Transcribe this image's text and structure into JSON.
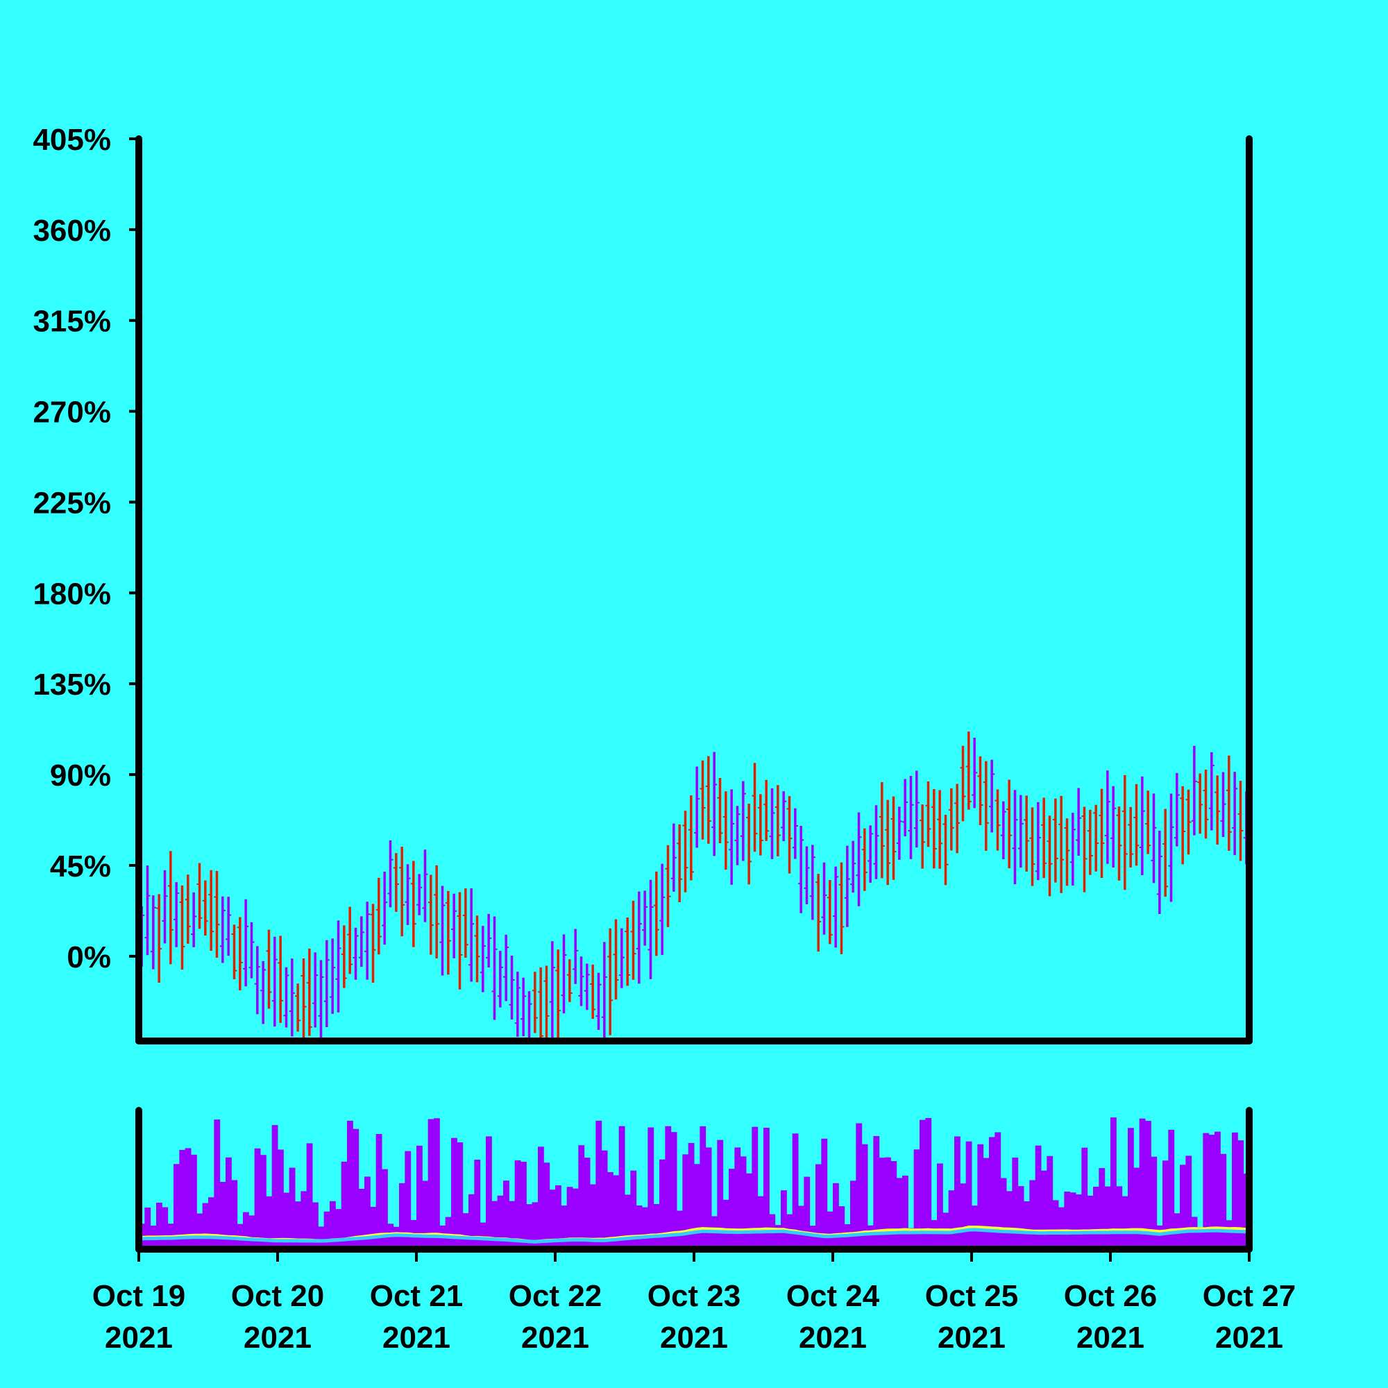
{
  "chart_data": {
    "type": "ohlc",
    "y_axis": {
      "ticks": [
        0,
        45,
        90,
        135,
        180,
        225,
        270,
        315,
        360,
        405
      ],
      "tick_labels": [
        "0%",
        "45%",
        "90%",
        "135%",
        "180%",
        "225%",
        "270%",
        "315%",
        "360%",
        "405%"
      ],
      "unit": "%",
      "range": [
        -42,
        405
      ]
    },
    "x_axis": {
      "tick_labels": [
        {
          "line1": "Oct 19",
          "line2": "2021"
        },
        {
          "line1": "Oct 20",
          "line2": "2021"
        },
        {
          "line1": "Oct 21",
          "line2": "2021"
        },
        {
          "line1": "Oct 22",
          "line2": "2021"
        },
        {
          "line1": "Oct 23",
          "line2": "2021"
        },
        {
          "line1": "Oct 24",
          "line2": "2021"
        },
        {
          "line1": "Oct 25",
          "line2": "2021"
        },
        {
          "line1": "Oct 26",
          "line2": "2021"
        },
        {
          "line1": "Oct 27",
          "line2": "2021"
        }
      ],
      "range": [
        "2021-10-19",
        "2021-10-27"
      ]
    },
    "bars_per_day": 24,
    "price_trend_anchors": [
      {
        "day": 0.0,
        "value": 15
      },
      {
        "day": 0.5,
        "value": 22
      },
      {
        "day": 1.0,
        "value": -18
      },
      {
        "day": 1.3,
        "value": -22
      },
      {
        "day": 1.6,
        "value": 5
      },
      {
        "day": 1.85,
        "value": 38
      },
      {
        "day": 2.2,
        "value": 22
      },
      {
        "day": 2.35,
        "value": 8
      },
      {
        "day": 2.65,
        "value": -10
      },
      {
        "day": 2.85,
        "value": -30
      },
      {
        "day": 3.15,
        "value": -8
      },
      {
        "day": 3.35,
        "value": -18
      },
      {
        "day": 3.6,
        "value": 12
      },
      {
        "day": 3.9,
        "value": 42
      },
      {
        "day": 4.05,
        "value": 72
      },
      {
        "day": 4.3,
        "value": 62
      },
      {
        "day": 4.65,
        "value": 72
      },
      {
        "day": 4.95,
        "value": 20
      },
      {
        "day": 5.25,
        "value": 50
      },
      {
        "day": 5.5,
        "value": 65
      },
      {
        "day": 5.85,
        "value": 62
      },
      {
        "day": 6.0,
        "value": 92
      },
      {
        "day": 6.2,
        "value": 72
      },
      {
        "day": 6.5,
        "value": 55
      },
      {
        "day": 6.9,
        "value": 62
      },
      {
        "day": 7.2,
        "value": 65
      },
      {
        "day": 7.35,
        "value": 45
      },
      {
        "day": 7.55,
        "value": 75
      },
      {
        "day": 7.75,
        "value": 80
      },
      {
        "day": 8.0,
        "value": 65
      }
    ],
    "series": [
      {
        "role": "price",
        "up_color": "#9900FF",
        "down_color": "#DD2200"
      },
      {
        "role": "volume",
        "color": "#9900FF"
      },
      {
        "role": "volume-ma-fast",
        "color": "#FFFF33"
      },
      {
        "role": "volume-ma-slow",
        "color": "#33CCFF"
      }
    ],
    "grid": false,
    "legend": "none"
  }
}
